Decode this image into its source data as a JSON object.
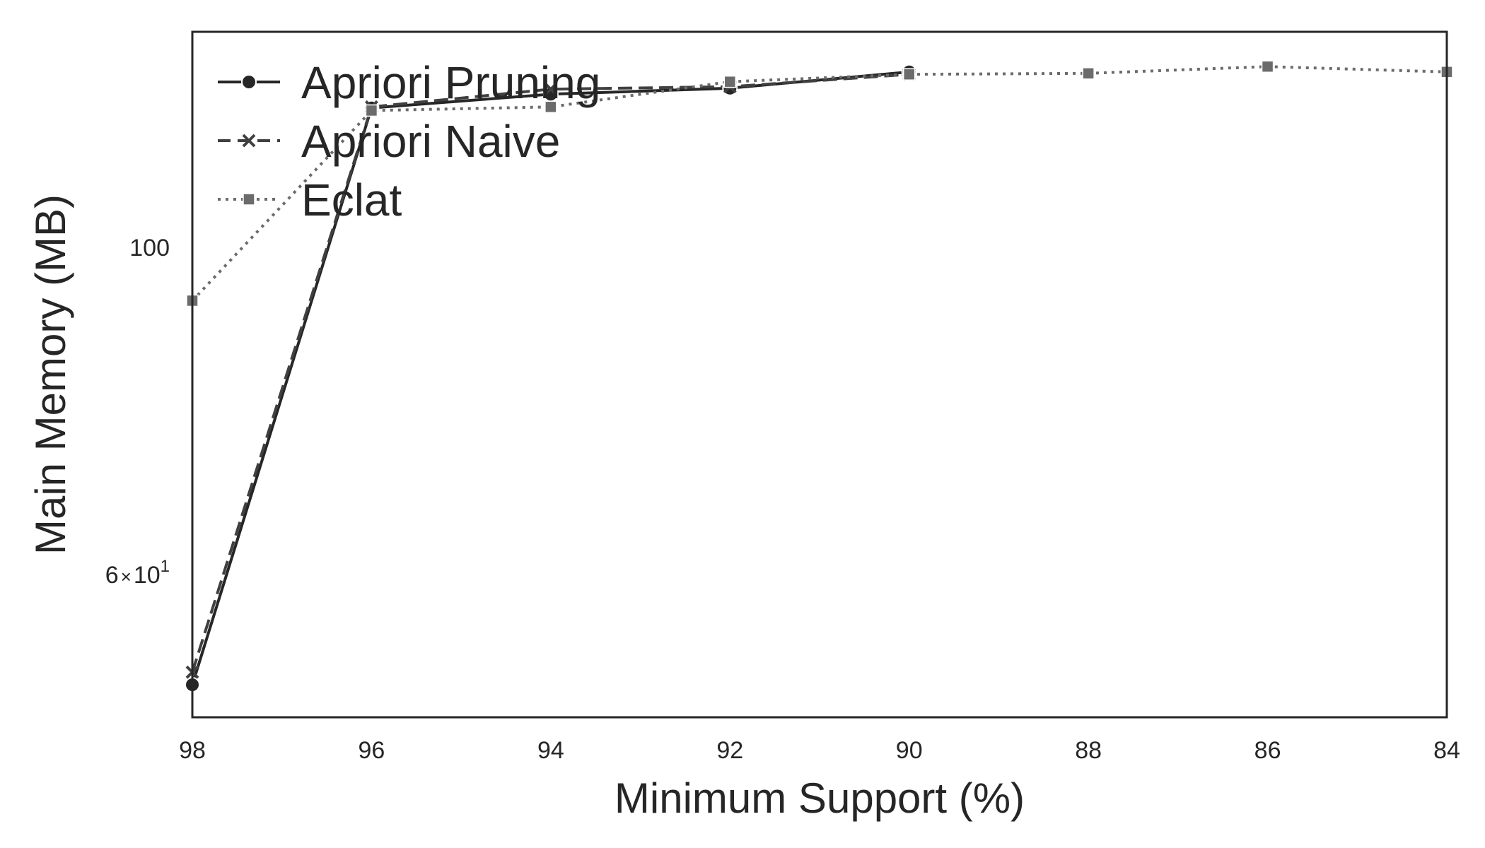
{
  "chart_data": {
    "type": "line",
    "title": "",
    "xlabel": "Minimum Support (%)",
    "ylabel": "Main Memory (MB)",
    "x": [
      98,
      96,
      94,
      92,
      90,
      88,
      86,
      84
    ],
    "xlim": [
      98,
      84
    ],
    "x_inverted": true,
    "x_ticks": [
      "98",
      "96",
      "94",
      "92",
      "90",
      "88",
      "86",
      "84"
    ],
    "yscale": "log",
    "ylim": [
      48,
      140
    ],
    "y_ticks": [
      {
        "value": 100,
        "label": "100",
        "kind": "plain"
      },
      {
        "value": 60,
        "mantissa": "6",
        "times": "×",
        "base": "10",
        "exponent": "1",
        "kind": "sci"
      }
    ],
    "grid": false,
    "legend_position": "top-left",
    "series": [
      {
        "name": "Apriori Pruning",
        "color": "#262626",
        "line": "solid",
        "marker": "circle",
        "x": [
          98,
          96,
          94,
          92,
          90
        ],
        "values": [
          50.5,
          124.3,
          127.0,
          128.2,
          131.5
        ]
      },
      {
        "name": "Apriori Naive",
        "color": "#404040",
        "line": "dashed",
        "marker": "x",
        "x": [
          98,
          96,
          94,
          92,
          90
        ],
        "values": [
          51.5,
          124.5,
          128.0,
          128.5,
          131.0
        ]
      },
      {
        "name": "Eclat",
        "color": "#6b6b6b",
        "line": "dotted",
        "marker": "square",
        "x": [
          98,
          96,
          94,
          92,
          90,
          88,
          86,
          84
        ],
        "values": [
          92.0,
          123.8,
          124.5,
          129.5,
          131.0,
          131.2,
          132.6,
          131.5
        ]
      }
    ]
  }
}
